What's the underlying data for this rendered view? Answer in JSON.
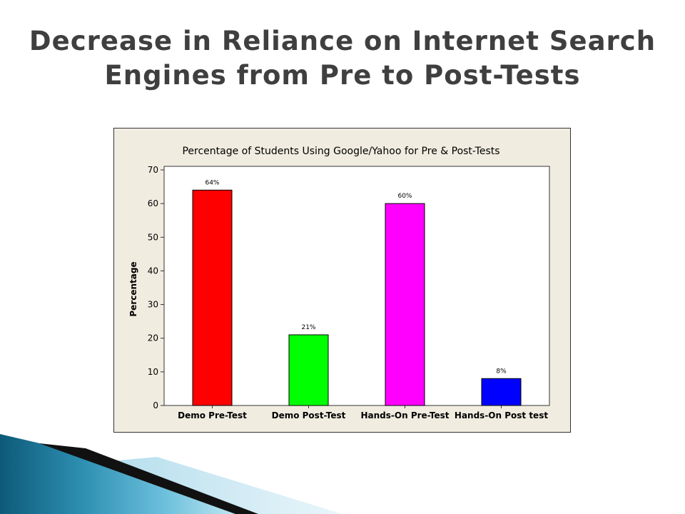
{
  "slide": {
    "title_line1": "Decrease in Reliance on Internet Search",
    "title_line2": "Engines from Pre to Post-Tests"
  },
  "chart_data": {
    "type": "bar",
    "title": "Percentage of Students Using Google/Yahoo for Pre & Post-Tests",
    "xlabel": "",
    "ylabel": "Percentage",
    "ylim": [
      0,
      70
    ],
    "yticks": [
      0,
      10,
      20,
      30,
      40,
      50,
      60,
      70
    ],
    "categories": [
      "Demo Pre-Test",
      "Demo Post-Test",
      "Hands-On Pre-Test",
      "Hands-On Post test"
    ],
    "values": [
      64,
      21,
      60,
      8
    ],
    "data_labels": [
      "64%",
      "21%",
      "60%",
      "8%"
    ],
    "colors": [
      "#ff0000",
      "#00ff00",
      "#ff00ff",
      "#0000ff"
    ],
    "grid": false,
    "legend": "none",
    "plot_background": "#ffffff",
    "frame_background": "#f0ece0"
  }
}
